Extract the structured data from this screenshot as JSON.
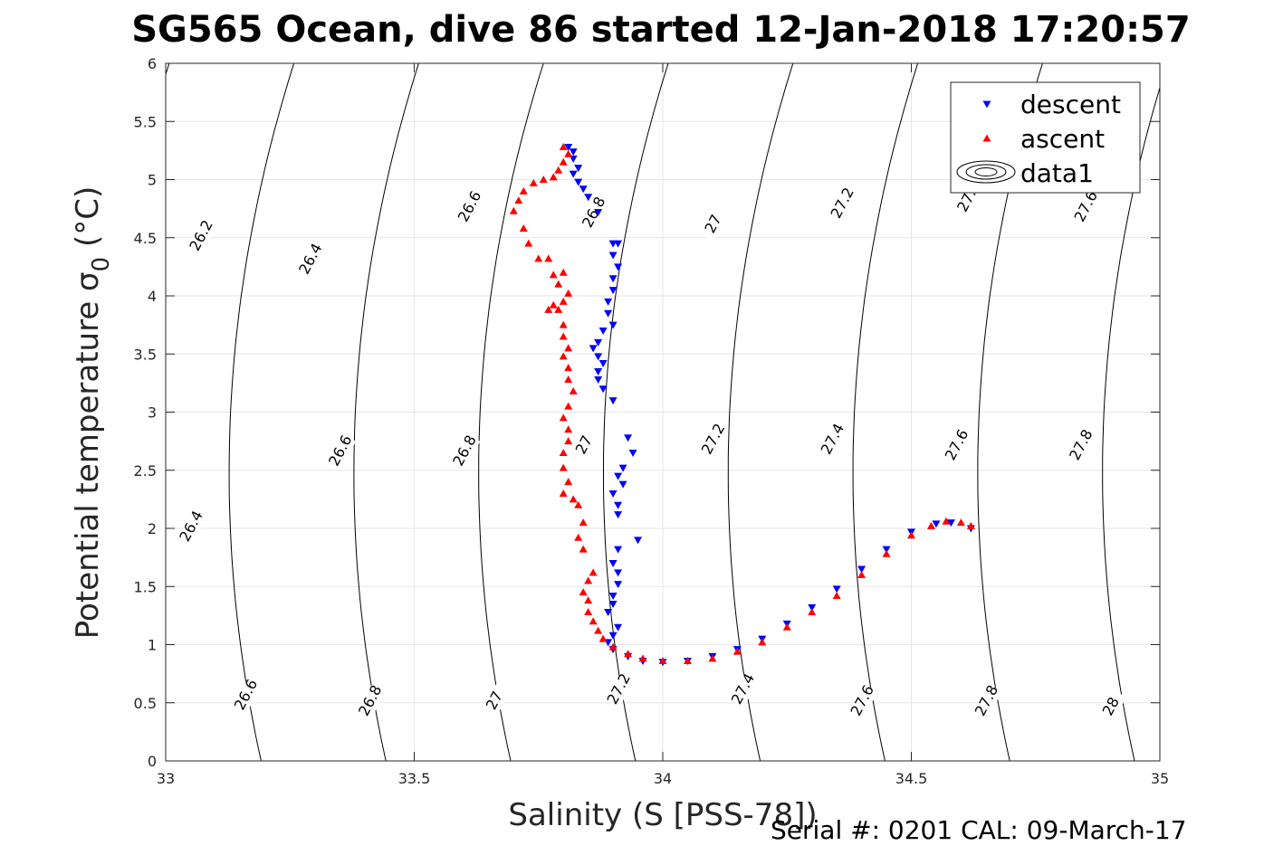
{
  "chart_data": {
    "type": "scatter",
    "title": "SG565 Ocean, dive 86 started 12-Jan-2018 17:20:57",
    "xlabel": "Salinity (S [PSS-78])",
    "ylabel_main": "Potential temperature ",
    "ylabel_symbol": "σ",
    "ylabel_subscript": "0",
    "ylabel_unit": " (°C)",
    "footer": "Serial #: 0201  CAL: 09-March-17",
    "xlim": [
      33,
      35
    ],
    "ylim": [
      0,
      6
    ],
    "xticks": [
      "33",
      "33.5",
      "34",
      "34.5",
      "35"
    ],
    "yticks": [
      "0",
      "0.5",
      "1",
      "1.5",
      "2",
      "2.5",
      "3",
      "3.5",
      "4",
      "4.5",
      "5",
      "5.5",
      "6"
    ],
    "xtick_values": [
      33,
      33.5,
      34,
      34.5,
      35
    ],
    "ytick_values": [
      0,
      0.5,
      1,
      1.5,
      2,
      2.5,
      3,
      3.5,
      4,
      4.5,
      5,
      5.5,
      6
    ],
    "grid": true,
    "legend_position": "top-right",
    "series": [
      {
        "name": "descent",
        "marker": "triangle-down",
        "color": "#0000ff",
        "points": [
          [
            33.81,
            5.28
          ],
          [
            33.82,
            5.24
          ],
          [
            33.82,
            5.18
          ],
          [
            33.83,
            5.1
          ],
          [
            33.82,
            5.05
          ],
          [
            33.83,
            4.98
          ],
          [
            33.84,
            4.92
          ],
          [
            33.85,
            4.85
          ],
          [
            33.87,
            4.72
          ],
          [
            33.9,
            4.45
          ],
          [
            33.91,
            4.45
          ],
          [
            33.9,
            4.35
          ],
          [
            33.91,
            4.25
          ],
          [
            33.9,
            4.15
          ],
          [
            33.9,
            4.05
          ],
          [
            33.89,
            3.95
          ],
          [
            33.89,
            3.85
          ],
          [
            33.9,
            3.75
          ],
          [
            33.88,
            3.7
          ],
          [
            33.87,
            3.6
          ],
          [
            33.86,
            3.55
          ],
          [
            33.87,
            3.48
          ],
          [
            33.88,
            3.42
          ],
          [
            33.87,
            3.35
          ],
          [
            33.87,
            3.28
          ],
          [
            33.88,
            3.2
          ],
          [
            33.9,
            3.1
          ],
          [
            33.93,
            2.78
          ],
          [
            33.94,
            2.65
          ],
          [
            33.92,
            2.52
          ],
          [
            33.91,
            2.45
          ],
          [
            33.92,
            2.38
          ],
          [
            33.9,
            2.3
          ],
          [
            33.91,
            2.2
          ],
          [
            33.91,
            2.12
          ],
          [
            33.95,
            1.9
          ],
          [
            33.91,
            1.82
          ],
          [
            33.9,
            1.7
          ],
          [
            33.91,
            1.62
          ],
          [
            33.91,
            1.52
          ],
          [
            33.9,
            1.42
          ],
          [
            33.9,
            1.35
          ],
          [
            33.89,
            1.28
          ],
          [
            33.91,
            1.15
          ],
          [
            33.9,
            1.08
          ],
          [
            33.89,
            1.02
          ],
          [
            33.9,
            0.96
          ],
          [
            33.93,
            0.9
          ],
          [
            33.96,
            0.86
          ],
          [
            34.0,
            0.85
          ],
          [
            34.05,
            0.86
          ],
          [
            34.1,
            0.9
          ],
          [
            34.15,
            0.96
          ],
          [
            34.2,
            1.05
          ],
          [
            34.25,
            1.18
          ],
          [
            34.3,
            1.32
          ],
          [
            34.35,
            1.48
          ],
          [
            34.4,
            1.65
          ],
          [
            34.45,
            1.82
          ],
          [
            34.5,
            1.97
          ],
          [
            34.55,
            2.04
          ],
          [
            34.58,
            2.05
          ],
          [
            34.62,
            2.0
          ]
        ]
      },
      {
        "name": "ascent",
        "marker": "triangle-up",
        "color": "#ff0000",
        "points": [
          [
            33.8,
            5.28
          ],
          [
            33.81,
            5.22
          ],
          [
            33.8,
            5.15
          ],
          [
            33.79,
            5.08
          ],
          [
            33.78,
            5.02
          ],
          [
            33.76,
            5.0
          ],
          [
            33.74,
            4.97
          ],
          [
            33.72,
            4.9
          ],
          [
            33.71,
            4.82
          ],
          [
            33.7,
            4.73
          ],
          [
            33.72,
            4.58
          ],
          [
            33.73,
            4.45
          ],
          [
            33.75,
            4.32
          ],
          [
            33.77,
            4.32
          ],
          [
            33.78,
            4.18
          ],
          [
            33.79,
            4.1
          ],
          [
            33.8,
            4.2
          ],
          [
            33.81,
            4.02
          ],
          [
            33.8,
            3.95
          ],
          [
            33.79,
            3.88
          ],
          [
            33.78,
            3.92
          ],
          [
            33.77,
            3.88
          ],
          [
            33.8,
            3.75
          ],
          [
            33.8,
            3.65
          ],
          [
            33.81,
            3.55
          ],
          [
            33.8,
            3.48
          ],
          [
            33.81,
            3.38
          ],
          [
            33.81,
            3.28
          ],
          [
            33.82,
            3.18
          ],
          [
            33.81,
            3.05
          ],
          [
            33.8,
            2.95
          ],
          [
            33.81,
            2.85
          ],
          [
            33.81,
            2.75
          ],
          [
            33.8,
            2.65
          ],
          [
            33.8,
            2.52
          ],
          [
            33.81,
            2.4
          ],
          [
            33.8,
            2.3
          ],
          [
            33.82,
            2.25
          ],
          [
            33.83,
            2.2
          ],
          [
            33.84,
            2.05
          ],
          [
            33.83,
            1.92
          ],
          [
            33.84,
            1.82
          ],
          [
            33.86,
            1.62
          ],
          [
            33.85,
            1.55
          ],
          [
            33.84,
            1.45
          ],
          [
            33.85,
            1.38
          ],
          [
            33.85,
            1.28
          ],
          [
            33.86,
            1.2
          ],
          [
            33.87,
            1.12
          ],
          [
            33.88,
            1.05
          ],
          [
            33.9,
            0.98
          ],
          [
            33.93,
            0.92
          ],
          [
            33.96,
            0.88
          ],
          [
            34.0,
            0.86
          ],
          [
            34.05,
            0.86
          ],
          [
            34.1,
            0.88
          ],
          [
            34.15,
            0.94
          ],
          [
            34.2,
            1.02
          ],
          [
            34.25,
            1.15
          ],
          [
            34.3,
            1.28
          ],
          [
            34.35,
            1.42
          ],
          [
            34.4,
            1.6
          ],
          [
            34.45,
            1.78
          ],
          [
            34.5,
            1.94
          ],
          [
            34.54,
            2.02
          ],
          [
            34.57,
            2.06
          ],
          [
            34.6,
            2.05
          ],
          [
            34.62,
            2.02
          ]
        ]
      },
      {
        "name": "data1",
        "marker": "contour"
      }
    ],
    "density_contours": [
      {
        "label": "26.2",
        "l": 26.2
      },
      {
        "label": "26.4",
        "l": 26.4
      },
      {
        "label": "26.6",
        "l": 26.6
      },
      {
        "label": "26.8",
        "l": 26.8
      },
      {
        "label": "27",
        "l": 27.0
      },
      {
        "label": "27.2",
        "l": 27.2
      },
      {
        "label": "27.4",
        "l": 27.4
      },
      {
        "label": "27.6",
        "l": 27.6
      },
      {
        "label": "27.8",
        "l": 27.8
      },
      {
        "label": "28",
        "l": 28.0
      }
    ],
    "contour_labels": [
      {
        "text": "26.2",
        "s": 33.08,
        "t": 4.5
      },
      {
        "text": "26.4",
        "s": 33.3,
        "t": 4.3
      },
      {
        "text": "26.6",
        "s": 33.62,
        "t": 4.75
      },
      {
        "text": "26.8",
        "s": 33.87,
        "t": 4.7
      },
      {
        "text": "27",
        "s": 34.11,
        "t": 4.6
      },
      {
        "text": "27.2",
        "s": 34.37,
        "t": 4.78
      },
      {
        "text": "27.",
        "s": 34.62,
        "t": 4.8
      },
      {
        "text": "27.6",
        "s": 34.86,
        "t": 4.75
      },
      {
        "text": "26.4",
        "s": 33.06,
        "t": 2.0
      },
      {
        "text": "26.6",
        "s": 33.36,
        "t": 2.65
      },
      {
        "text": "26.8",
        "s": 33.61,
        "t": 2.65
      },
      {
        "text": "27",
        "s": 33.85,
        "t": 2.7
      },
      {
        "text": "27.2",
        "s": 34.11,
        "t": 2.75
      },
      {
        "text": "27.4",
        "s": 34.35,
        "t": 2.75
      },
      {
        "text": "27.6",
        "s": 34.6,
        "t": 2.7
      },
      {
        "text": "27.8",
        "s": 34.85,
        "t": 2.7
      },
      {
        "text": "26.6",
        "s": 33.17,
        "t": 0.55
      },
      {
        "text": "26.8",
        "s": 33.42,
        "t": 0.5
      },
      {
        "text": "27",
        "s": 33.67,
        "t": 0.5
      },
      {
        "text": "27.2",
        "s": 33.92,
        "t": 0.6
      },
      {
        "text": "27.4",
        "s": 34.17,
        "t": 0.6
      },
      {
        "text": "27.6",
        "s": 34.41,
        "t": 0.5
      },
      {
        "text": "27.8",
        "s": 34.66,
        "t": 0.5
      },
      {
        "text": "28",
        "s": 34.91,
        "t": 0.45
      }
    ]
  }
}
